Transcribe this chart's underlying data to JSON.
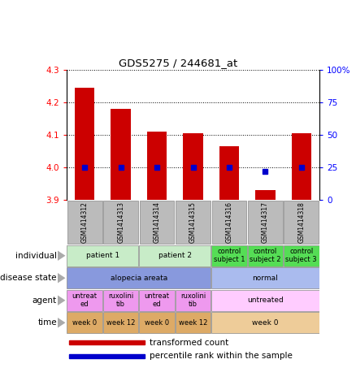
{
  "title": "GDS5275 / 244681_at",
  "samples": [
    "GSM1414312",
    "GSM1414313",
    "GSM1414314",
    "GSM1414315",
    "GSM1414316",
    "GSM1414317",
    "GSM1414318"
  ],
  "transformed_counts": [
    4.245,
    4.18,
    4.11,
    4.105,
    4.065,
    3.93,
    4.105
  ],
  "percentile_ranks": [
    25,
    25,
    25,
    25,
    25,
    22,
    25
  ],
  "ylim_left": [
    3.9,
    4.3
  ],
  "ylim_right": [
    0,
    100
  ],
  "yticks_left": [
    3.9,
    4.0,
    4.1,
    4.2,
    4.3
  ],
  "yticks_right": [
    0,
    25,
    50,
    75,
    100
  ],
  "ytick_right_labels": [
    "0",
    "25",
    "50",
    "75",
    "100%"
  ],
  "bar_color": "#cc0000",
  "dot_color": "#0000cc",
  "bar_bottom": 3.9,
  "annotation_rows": [
    {
      "label": "individual",
      "cells": [
        {
          "text": "patient 1",
          "span": 2,
          "color": "#c8ecc8"
        },
        {
          "text": "patient 2",
          "span": 2,
          "color": "#c8ecc8"
        },
        {
          "text": "control\nsubject 1",
          "span": 1,
          "color": "#55dd55"
        },
        {
          "text": "control\nsubject 2",
          "span": 1,
          "color": "#55dd55"
        },
        {
          "text": "control\nsubject 3",
          "span": 1,
          "color": "#55dd55"
        }
      ]
    },
    {
      "label": "disease state",
      "cells": [
        {
          "text": "alopecia areata",
          "span": 4,
          "color": "#8899dd"
        },
        {
          "text": "normal",
          "span": 3,
          "color": "#aabbee"
        }
      ]
    },
    {
      "label": "agent",
      "cells": [
        {
          "text": "untreat\ned",
          "span": 1,
          "color": "#ee99ee"
        },
        {
          "text": "ruxolini\ntib",
          "span": 1,
          "color": "#ee99ee"
        },
        {
          "text": "untreat\ned",
          "span": 1,
          "color": "#ee99ee"
        },
        {
          "text": "ruxolini\ntib",
          "span": 1,
          "color": "#ee99ee"
        },
        {
          "text": "untreated",
          "span": 3,
          "color": "#ffccff"
        }
      ]
    },
    {
      "label": "time",
      "cells": [
        {
          "text": "week 0",
          "span": 1,
          "color": "#ddaa66"
        },
        {
          "text": "week 12",
          "span": 1,
          "color": "#ddaa66"
        },
        {
          "text": "week 0",
          "span": 1,
          "color": "#ddaa66"
        },
        {
          "text": "week 12",
          "span": 1,
          "color": "#ddaa66"
        },
        {
          "text": "week 0",
          "span": 3,
          "color": "#eecc99"
        }
      ]
    }
  ],
  "legend_items": [
    {
      "color": "#cc0000",
      "label": "transformed count"
    },
    {
      "color": "#0000cc",
      "label": "percentile rank within the sample"
    }
  ],
  "sample_bg_color": "#bbbbbb"
}
